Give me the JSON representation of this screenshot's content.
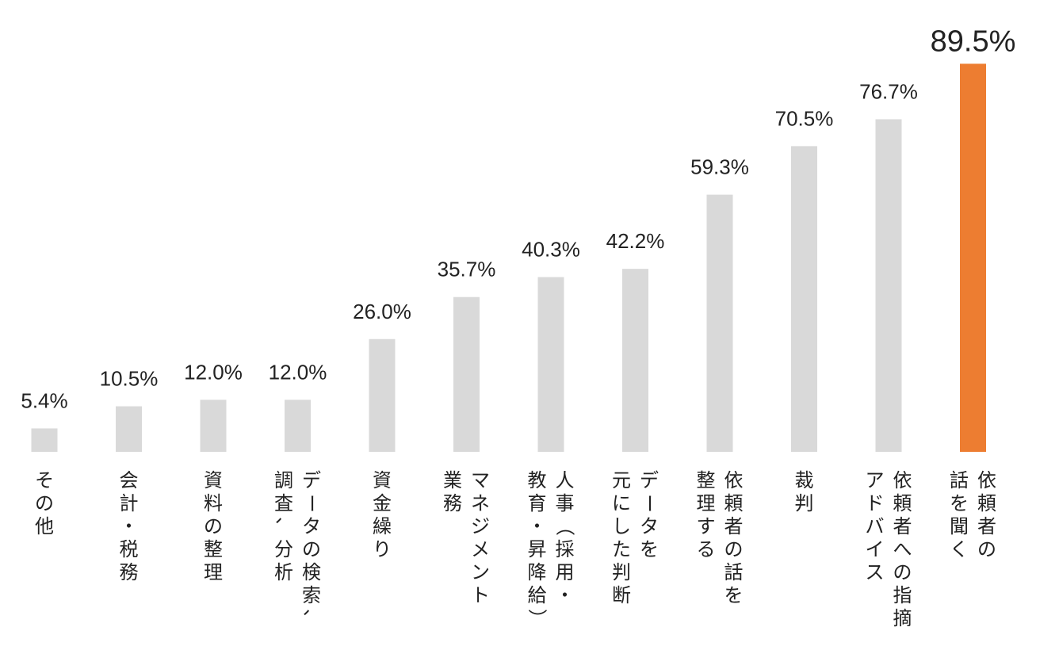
{
  "chart_data": {
    "type": "bar",
    "title": "",
    "xlabel": "",
    "ylabel": "",
    "ylim": [
      0,
      100
    ],
    "grid": false,
    "highlight_color": "#ED7D31",
    "base_color": "#D9D9D9",
    "categories": [
      [
        "その他"
      ],
      [
        "会計・税務"
      ],
      [
        "資料の整理"
      ],
      [
        "データの検索、",
        "調査、分析"
      ],
      [
        "資金繰り"
      ],
      [
        "マネジメント",
        "業務"
      ],
      [
        "人事（採用・",
        "教育・昇降給）"
      ],
      [
        "データを",
        "元にした判断"
      ],
      [
        "依頼者の話を",
        "整理する"
      ],
      [
        "裁判"
      ],
      [
        "依頼者への指摘",
        "アドバイス"
      ],
      [
        "依頼者の",
        "話を聞く"
      ]
    ],
    "values": [
      5.4,
      10.5,
      12.0,
      12.0,
      26.0,
      35.7,
      40.3,
      42.2,
      59.3,
      70.5,
      76.7,
      89.5
    ],
    "labels": [
      "5.4%",
      "10.5%",
      "12.0%",
      "12.0%",
      "26.0%",
      "35.7%",
      "40.3%",
      "42.2%",
      "59.3%",
      "70.5%",
      "76.7%",
      "89.5%"
    ],
    "highlight_index": 11
  }
}
